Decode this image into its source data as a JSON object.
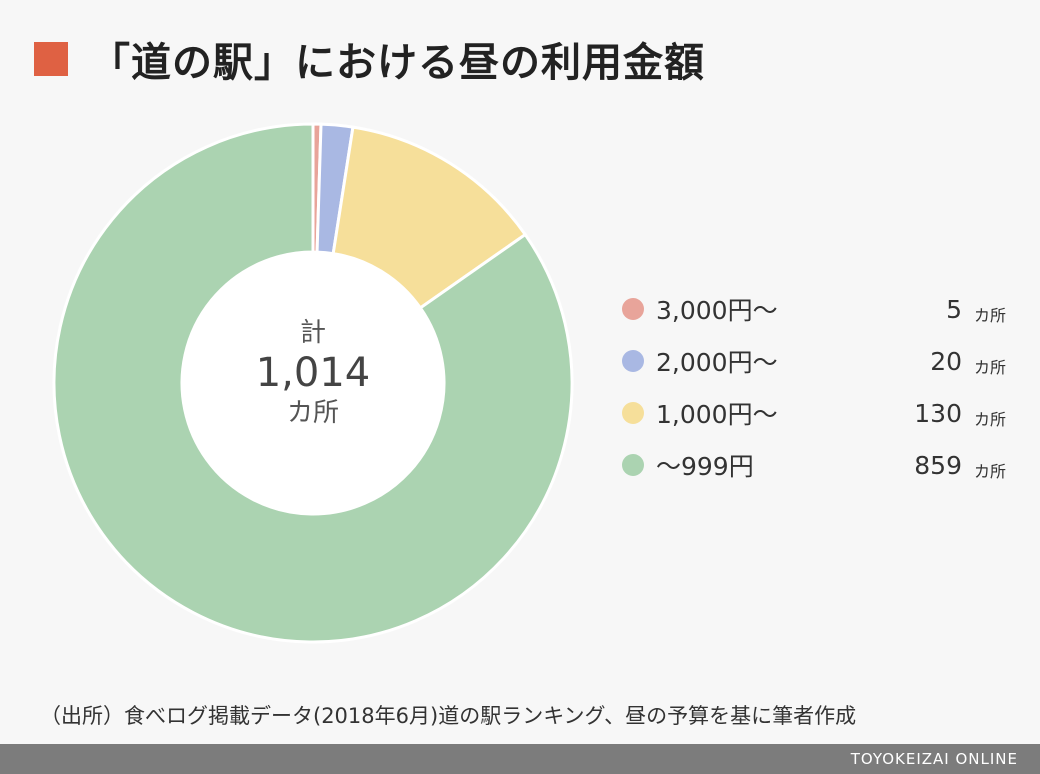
{
  "title": "「道の駅」における昼の利用金額",
  "accent_color": "#df6143",
  "center": {
    "top": "計",
    "total": "1,014",
    "unit": "カ所"
  },
  "source": "（出所）食べログ掲載データ(2018年6月)道の駅ランキング、昼の予算を基に筆者作成",
  "footer_brand": "TOYOKEIZAI ONLINE",
  "chart_data": {
    "type": "pie",
    "variant": "donut",
    "legend_position": "right",
    "series": [
      {
        "name": "3,000円〜",
        "value": 5,
        "value_label": "5",
        "unit": "カ所",
        "color": "#e8a49a"
      },
      {
        "name": "2,000円〜",
        "value": 20,
        "value_label": "20",
        "unit": "カ所",
        "color": "#a9b8e3"
      },
      {
        "name": "1,000円〜",
        "value": 130,
        "value_label": "130",
        "unit": "カ所",
        "color": "#f6df9a"
      },
      {
        "name": "〜999円",
        "value": 859,
        "value_label": "859",
        "unit": "カ所",
        "color": "#abd3b1"
      }
    ]
  }
}
